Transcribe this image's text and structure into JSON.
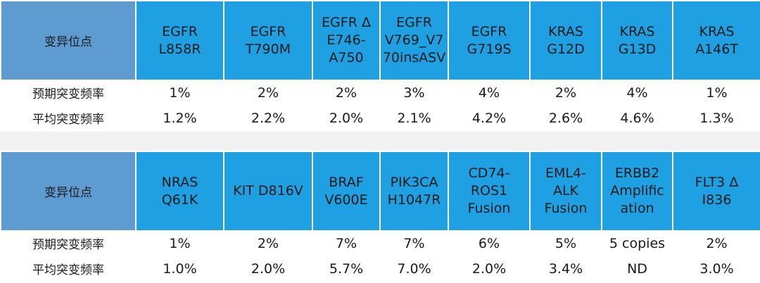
{
  "tables": [
    {
      "header_label": "变异位点",
      "headers": [
        [
          "EGFR",
          "L858R"
        ],
        [
          "EGFR",
          "T790M"
        ],
        [
          "EGFR Δ",
          "E746-",
          "A750"
        ],
        [
          "EGFR",
          "V769_V7",
          "70insASV"
        ],
        [
          "EGFR",
          "G719S"
        ],
        [
          "KRAS",
          "G12D"
        ],
        [
          "KRAS",
          "G13D"
        ],
        [
          "KRAS",
          "A146T"
        ]
      ],
      "row1_label": "预期突变频率",
      "row1": [
        "1%",
        "2%",
        "2%",
        "3%",
        "4%",
        "2%",
        "4%",
        "1%"
      ],
      "row2_label": "平均突变频率",
      "row2": [
        "1.2%",
        "2.2%",
        "2.0%",
        "2.1%",
        "4.2%",
        "2.6%",
        "4.6%",
        "1.3%"
      ]
    },
    {
      "header_label": "变异位点",
      "headers": [
        [
          "NRAS",
          "Q61K"
        ],
        [
          "KIT D816V"
        ],
        [
          "BRAF",
          "V600E"
        ],
        [
          "PIK3CA",
          "H1047R"
        ],
        [
          "CD74-",
          "ROS1",
          "Fusion"
        ],
        [
          "EML4-",
          "ALK",
          "Fusion"
        ],
        [
          "ERBB2",
          "Amplific",
          "ation"
        ],
        [
          "FLT3 Δ",
          "I836"
        ]
      ],
      "row1_label": "预期突变频率",
      "row1": [
        "1%",
        "2%",
        "7%",
        "7%",
        "6%",
        "5%",
        "5 copies",
        "2%"
      ],
      "row2_label": "平均突变频率",
      "row2": [
        "1.0%",
        "2.0%",
        "5.7%",
        "7.0%",
        "2.0%",
        "3.4%",
        "ND",
        "3.0%"
      ]
    }
  ]
}
